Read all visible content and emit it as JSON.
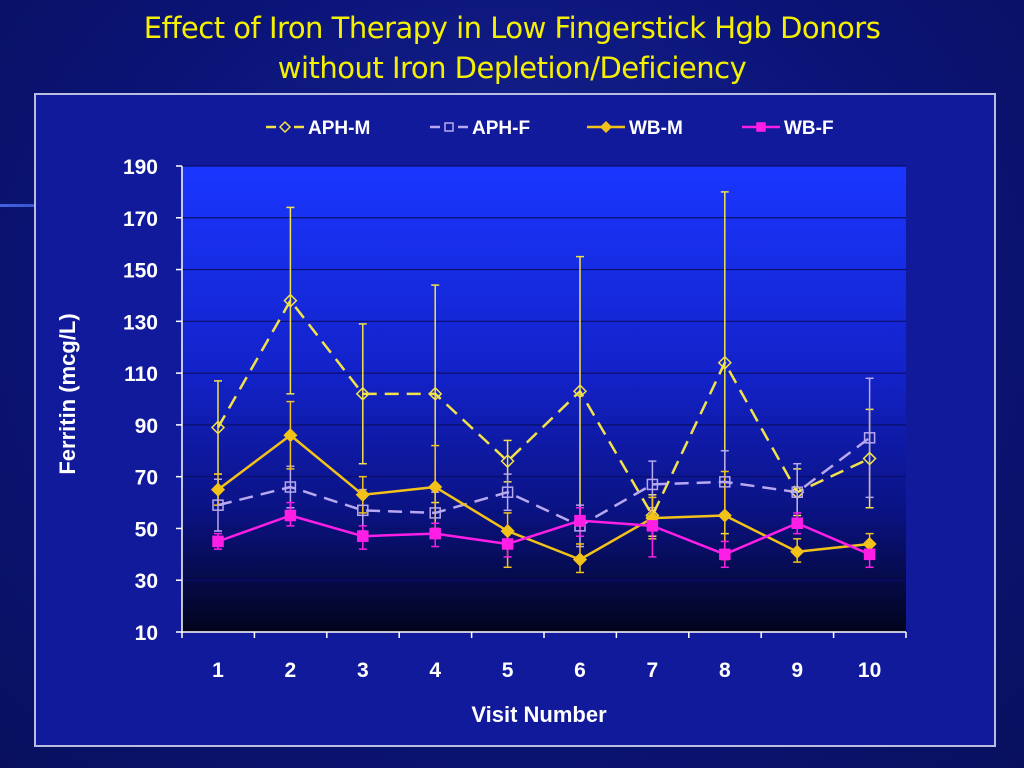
{
  "slide": {
    "title_line1": "Effect of Iron Therapy in Low Fingerstick Hgb Donors",
    "title_line2": "without Iron Depletion/Deficiency"
  },
  "chart_data": {
    "type": "line",
    "xlabel": "Visit Number",
    "ylabel": "Ferritin (mcg/L)",
    "categories": [
      "1",
      "2",
      "3",
      "4",
      "5",
      "6",
      "7",
      "8",
      "9",
      "10"
    ],
    "ylim": [
      10,
      190
    ],
    "yticks": [
      10,
      30,
      50,
      70,
      90,
      110,
      130,
      150,
      170,
      190
    ],
    "grid": "horizontal",
    "legend_position": "top",
    "series": [
      {
        "name": "APH-M",
        "color": "#f2e24a",
        "marker": "diamond-open",
        "dash": "dashed",
        "values": [
          89,
          138,
          102,
          102,
          76,
          103,
          55,
          114,
          64,
          77
        ],
        "error_high": [
          107,
          174,
          129,
          144,
          84,
          155,
          63,
          180,
          73,
          96
        ],
        "error_low": [
          71,
          102,
          75,
          60,
          68,
          51,
          47,
          48,
          55,
          58
        ]
      },
      {
        "name": "APH-F",
        "color": "#b8a8f0",
        "marker": "square-open",
        "dash": "dashed",
        "values": [
          59,
          66,
          57,
          56,
          64,
          51,
          67,
          68,
          64,
          85
        ],
        "error_high": [
          69,
          74,
          65,
          64,
          71,
          59,
          76,
          80,
          75,
          108
        ],
        "error_low": [
          49,
          58,
          49,
          48,
          57,
          43,
          58,
          56,
          53,
          62
        ]
      },
      {
        "name": "WB-M",
        "color": "#f2c21a",
        "marker": "diamond-filled",
        "dash": "solid",
        "values": [
          65,
          86,
          63,
          66,
          49,
          38,
          54,
          55,
          41,
          44
        ],
        "error_high": [
          71,
          99,
          70,
          82,
          56,
          44,
          62,
          72,
          46,
          48
        ],
        "error_low": [
          59,
          73,
          56,
          50,
          35,
          33,
          46,
          38,
          37,
          40
        ]
      },
      {
        "name": "WB-F",
        "color": "#ff1ee6",
        "marker": "square-filled",
        "dash": "solid",
        "values": [
          45,
          55,
          47,
          48,
          44,
          53,
          51,
          40,
          52,
          40
        ],
        "error_high": [
          48,
          60,
          51,
          52,
          49,
          58,
          57,
          45,
          56,
          44
        ],
        "error_low": [
          42,
          51,
          42,
          43,
          39,
          47,
          39,
          35,
          48,
          35
        ]
      }
    ]
  }
}
